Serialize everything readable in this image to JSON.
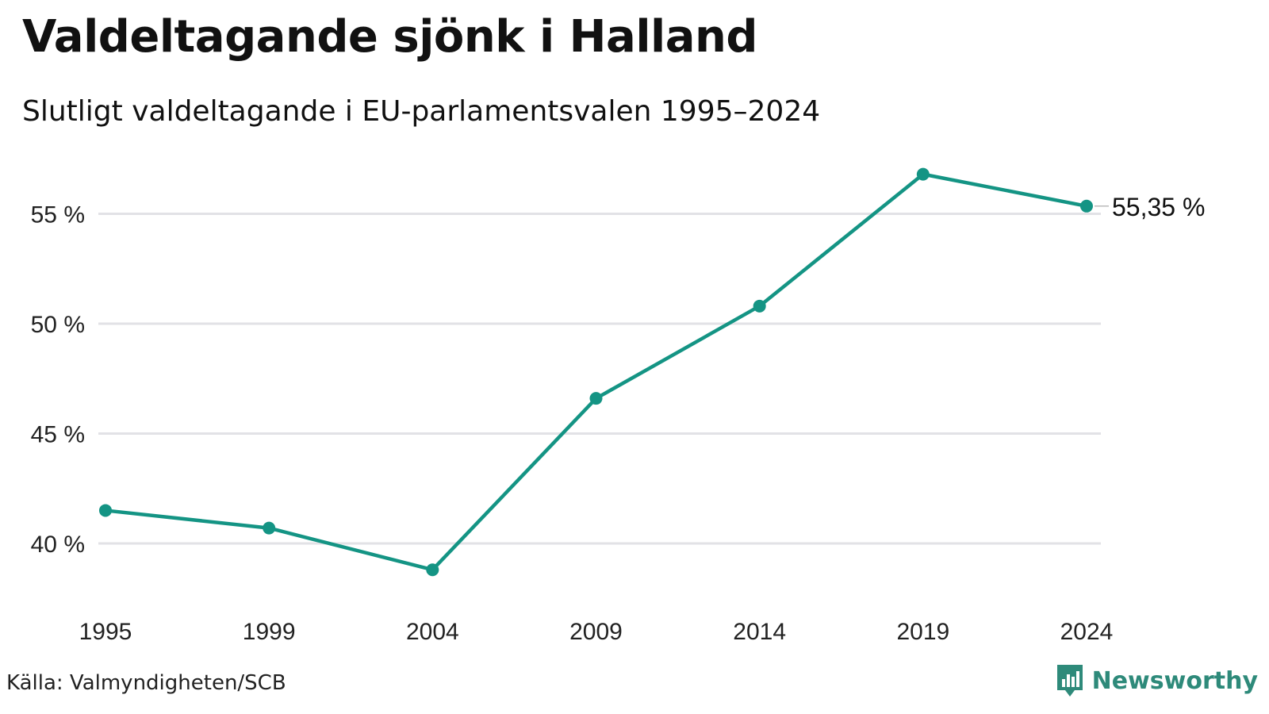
{
  "title": "Valdeltagande sjönk i Halland",
  "subtitle": "Slutligt valdeltagande i EU-parlamentsvalen 1995–2024",
  "source": "Källa: Valmyndigheten/SCB",
  "brand": "Newsworthy",
  "colors": {
    "line": "#149484",
    "grid": "#e2e2e6",
    "brand": "#2e8a7a"
  },
  "chart_data": {
    "type": "line",
    "categories": [
      "1995",
      "1999",
      "2004",
      "2009",
      "2014",
      "2019",
      "2024"
    ],
    "series": [
      {
        "values": [
          41.5,
          40.7,
          38.8,
          46.6,
          50.8,
          56.8,
          55.35
        ]
      }
    ],
    "y_ticks": [
      40,
      45,
      50,
      55
    ],
    "y_tick_labels": [
      "40 %",
      "45 %",
      "50 %",
      "55 %"
    ],
    "ylim": [
      37.5,
      57.5
    ],
    "end_label": "55,35 %",
    "grid": "horizontal",
    "legend": "none"
  }
}
